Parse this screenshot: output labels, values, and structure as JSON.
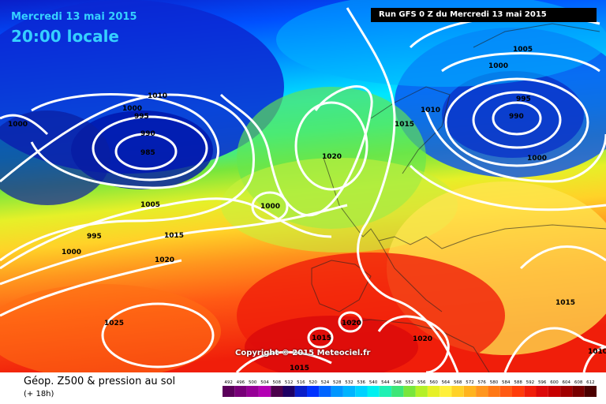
{
  "header": {
    "date": "Mercredi 13 mai 2015",
    "local_time": "20:00 locale"
  },
  "run_info": "Run GFS 0 Z du Mercredi 13 mai 2015",
  "copyright": "Copyright © 2015 Meteociel.fr",
  "footer": {
    "title": "Géop. Z500 & pression au sol",
    "subtitle": "(+ 18h)"
  },
  "isobar_labels": [
    "1000",
    "1010",
    "1000",
    "995",
    "990",
    "985",
    "1005",
    "995",
    "1000",
    "1015",
    "1020",
    "1000",
    "1020",
    "1025",
    "1015",
    "1020",
    "1015",
    "1020",
    "1015",
    "1010",
    "1005",
    "1000",
    "995",
    "990",
    "1000",
    "1015",
    "1010"
  ],
  "scale_values": [
    "492",
    "496",
    "500",
    "504",
    "508",
    "512",
    "516",
    "520",
    "524",
    "528",
    "532",
    "536",
    "540",
    "544",
    "548",
    "552",
    "556",
    "560",
    "564",
    "568",
    "572",
    "576",
    "580",
    "584",
    "588",
    "592",
    "596",
    "600",
    "604",
    "608",
    "612"
  ],
  "scale_colors": [
    "#5a005a",
    "#780078",
    "#960096",
    "#b400b4",
    "#4b004b",
    "#1e0064",
    "#0a1ec8",
    "#0032ff",
    "#0064ff",
    "#0096ff",
    "#00b4ff",
    "#00d2ff",
    "#00f0f0",
    "#1ef0b4",
    "#3ce678",
    "#78e63c",
    "#b4f028",
    "#e6f028",
    "#fff03c",
    "#ffd228",
    "#ffb41e",
    "#ff961e",
    "#ff7814",
    "#ff5a14",
    "#ff3c0a",
    "#f01e0a",
    "#dc0a0a",
    "#c80000",
    "#a00000",
    "#780000",
    "#4b0000"
  ]
}
